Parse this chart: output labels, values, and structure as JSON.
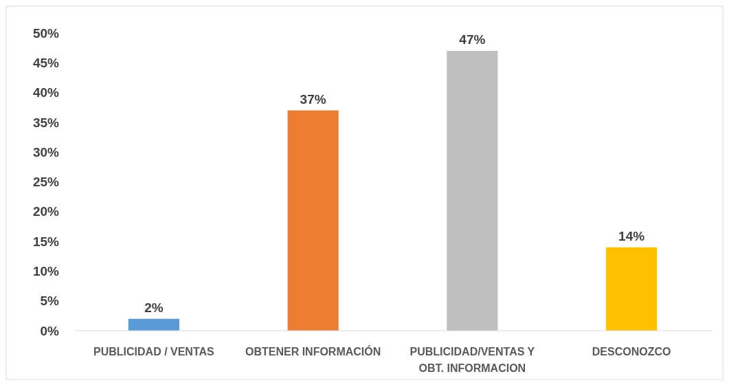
{
  "chart_data": {
    "type": "bar",
    "categories": [
      "PUBLICIDAD / VENTAS",
      "OBTENER INFORMACIÓN",
      "PUBLICIDAD/VENTAS Y OBT. INFORMACION",
      "DESCONOZCO"
    ],
    "values": [
      2,
      37,
      47,
      14
    ],
    "value_labels": [
      "2%",
      "37%",
      "47%",
      "14%"
    ],
    "colors": [
      "#5b9bd5",
      "#ed7d31",
      "#bfbfbf",
      "#ffc000"
    ],
    "ylim": [
      0,
      50
    ],
    "yticks": [
      {
        "value": 0,
        "label": "0%"
      },
      {
        "value": 5,
        "label": "5%"
      },
      {
        "value": 10,
        "label": "10%"
      },
      {
        "value": 15,
        "label": "15%"
      },
      {
        "value": 20,
        "label": "20%"
      },
      {
        "value": 25,
        "label": "25%"
      },
      {
        "value": 30,
        "label": "30%"
      },
      {
        "value": 35,
        "label": "35%"
      },
      {
        "value": 40,
        "label": "40%"
      },
      {
        "value": 45,
        "label": "45%"
      },
      {
        "value": 50,
        "label": "50%"
      }
    ],
    "grid": false
  }
}
